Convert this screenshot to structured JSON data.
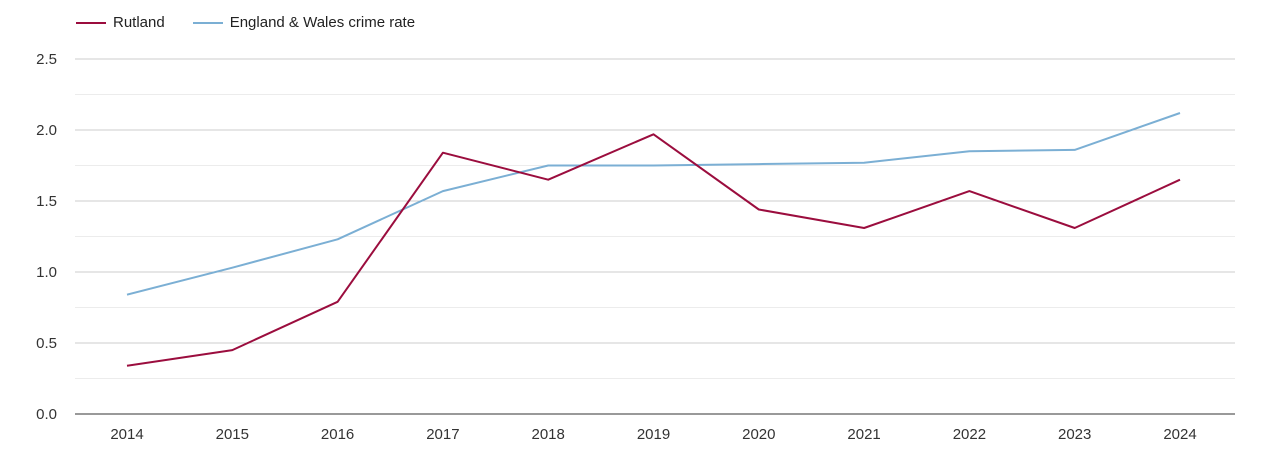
{
  "chart_data": {
    "type": "line",
    "title": "",
    "xlabel": "",
    "ylabel": "",
    "categories": [
      "2014",
      "2015",
      "2016",
      "2017",
      "2018",
      "2019",
      "2020",
      "2021",
      "2022",
      "2023",
      "2024"
    ],
    "ylim": [
      0,
      2.5
    ],
    "yticks": [
      "0.0",
      "0.5",
      "1.0",
      "1.5",
      "2.0",
      "2.5"
    ],
    "grid": true,
    "legend_position": "top-left",
    "series": [
      {
        "name": "Rutland",
        "color": "#9b0d3e",
        "values": [
          0.34,
          0.45,
          0.79,
          1.84,
          1.65,
          1.97,
          1.44,
          1.31,
          1.57,
          1.31,
          1.65
        ]
      },
      {
        "name": "England & Wales crime rate",
        "color": "#7bafd4",
        "values": [
          0.84,
          1.03,
          1.23,
          1.57,
          1.75,
          1.75,
          1.76,
          1.77,
          1.85,
          1.86,
          2.12
        ]
      }
    ]
  }
}
